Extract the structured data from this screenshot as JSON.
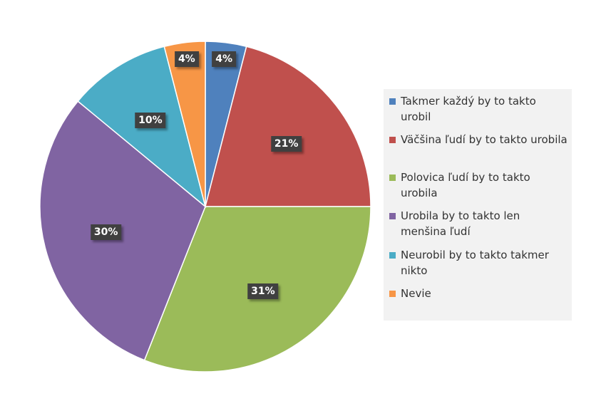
{
  "chart_data": {
    "type": "pie",
    "title": "",
    "categories": [
      "Takmer každý by to takto urobil",
      "Väčšina ľudí by to takto urobila",
      "Polovica ľudí by to takto urobila",
      "Urobila by to takto len menšina ľudí",
      "Neurobil by to takto takmer nikto",
      "Nevie"
    ],
    "values": [
      4,
      21,
      31,
      30,
      10,
      4
    ],
    "data_labels": [
      "4%",
      "21%",
      "31%",
      "30%",
      "10%",
      "4%"
    ],
    "colors": [
      "#4f81bd",
      "#c0504d",
      "#9bbb59",
      "#8064a2",
      "#4bacc6",
      "#f79646"
    ],
    "start_angle_deg": 0,
    "direction": "clockwise",
    "legend_position": "right"
  }
}
